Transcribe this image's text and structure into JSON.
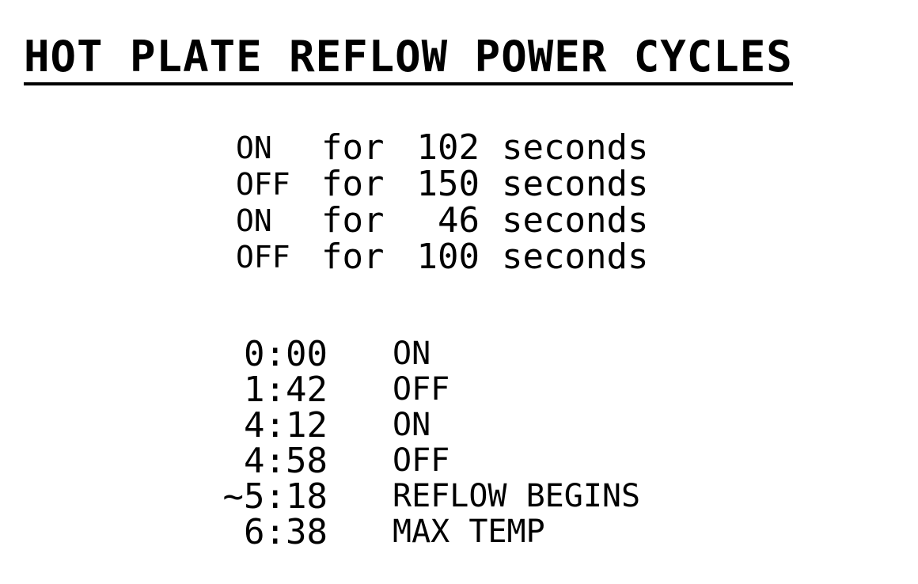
{
  "title": "HOT PLATE REFLOW POWER CYCLES",
  "cycles": [
    {
      "state": "ON",
      "for": "for",
      "duration": "102",
      "unit": "seconds"
    },
    {
      "state": "OFF",
      "for": "for",
      "duration": "150",
      "unit": "seconds"
    },
    {
      "state": "ON",
      "for": "for",
      "duration": "46",
      "unit": "seconds"
    },
    {
      "state": "OFF",
      "for": "for",
      "duration": "100",
      "unit": "seconds"
    }
  ],
  "timeline": [
    {
      "time": "0:00",
      "event": "ON"
    },
    {
      "time": "1:42",
      "event": "OFF"
    },
    {
      "time": "4:12",
      "event": "ON"
    },
    {
      "time": "4:58",
      "event": "OFF"
    },
    {
      "time": "~5:18",
      "event": "REFLOW BEGINS"
    },
    {
      "time": "6:38",
      "event": "MAX TEMP"
    }
  ]
}
